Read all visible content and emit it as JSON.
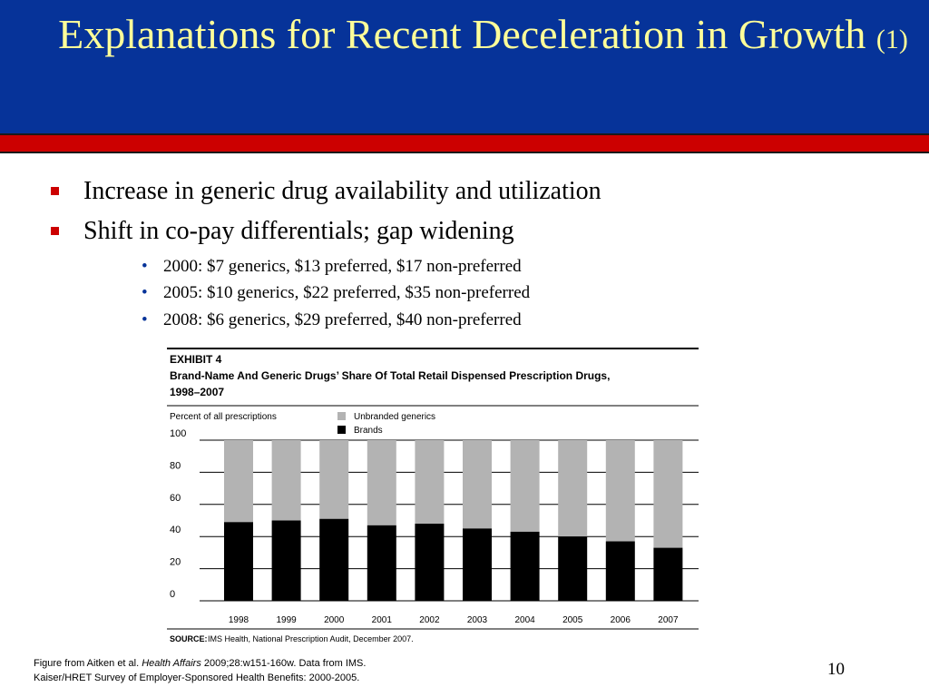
{
  "slide": {
    "title_main": "Explanations for Recent Deceleration in Growth",
    "title_suffix": "(1)",
    "page_number": "10",
    "colors": {
      "header_bg": "#063399",
      "red_bar": "#cc0000",
      "title_text": "#ffff99"
    }
  },
  "bullets": [
    {
      "text": "Increase in generic drug availability and utilization"
    },
    {
      "text": "Shift in co-pay differentials; gap widening"
    }
  ],
  "sub_bullets": [
    {
      "text": "2000: $7 generics, $13 preferred, $17 non-preferred"
    },
    {
      "text": "2005: $10 generics, $22 preferred, $35 non-preferred"
    },
    {
      "text": "2008: $6 generics, $29 preferred, $40 non-preferred"
    }
  ],
  "exhibit": {
    "label": "EXHIBIT 4",
    "title_line1": "Brand-Name And Generic Drugs’ Share Of Total Retail Dispensed Prescription Drugs,",
    "title_line2": "1998–2007",
    "source_label": "SOURCE:",
    "source_text": "IMS Health, National Prescription Audit, December 2007."
  },
  "chart_data": {
    "type": "bar",
    "stacked": true,
    "ylabel": "Percent of all prescriptions",
    "ylim": [
      0,
      100
    ],
    "yticks": [
      0,
      20,
      40,
      60,
      80,
      100
    ],
    "grid": true,
    "legend_position": "top",
    "categories": [
      "1998",
      "1999",
      "2000",
      "2001",
      "2002",
      "2003",
      "2004",
      "2005",
      "2006",
      "2007"
    ],
    "series": [
      {
        "name": "Brands",
        "color": "#000000",
        "values": [
          49,
          50,
          51,
          47,
          48,
          45,
          43,
          40,
          37,
          33
        ]
      },
      {
        "name": "Unbranded generics",
        "color": "#b3b3b3",
        "values": [
          51,
          50,
          49,
          53,
          52,
          55,
          57,
          60,
          63,
          67
        ]
      }
    ]
  },
  "footer": {
    "line1_pre": "Figure from Aitken et al. ",
    "line1_journal": "Health Affairs",
    "line1_post": " 2009;28:w151-160w.  Data from IMS.",
    "line2": "Kaiser/HRET Survey of Employer-Sponsored Health Benefits: 2000-2005."
  }
}
